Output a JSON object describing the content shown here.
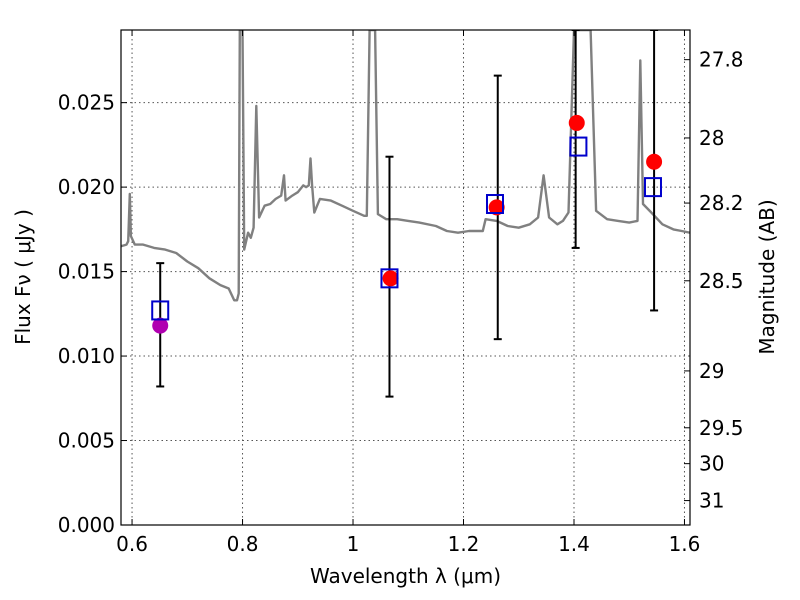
{
  "chart_data": {
    "type": "scatter",
    "xlabel": "Wavelength  λ (μm)",
    "ylabel": "Flux  Fν  ( μJy )",
    "ylabel_right": "Magnitude (AB)",
    "xlim": [
      0.58,
      1.61
    ],
    "ylim": [
      0.0,
      0.0293
    ],
    "grid": true,
    "x_ticks": [
      {
        "value": 0.6,
        "label": "0.6"
      },
      {
        "value": 0.8,
        "label": "0.8"
      },
      {
        "value": 1.0,
        "label": "1"
      },
      {
        "value": 1.2,
        "label": "1.2"
      },
      {
        "value": 1.4,
        "label": "1.4"
      },
      {
        "value": 1.6,
        "label": "1.6"
      }
    ],
    "y_ticks": [
      {
        "value": 0.0,
        "label": "0.000"
      },
      {
        "value": 0.005,
        "label": "0.005"
      },
      {
        "value": 0.01,
        "label": "0.010"
      },
      {
        "value": 0.015,
        "label": "0.015"
      },
      {
        "value": 0.02,
        "label": "0.020"
      },
      {
        "value": 0.025,
        "label": "0.025"
      }
    ],
    "mag_ticks": [
      {
        "value": 27.8,
        "label": "27.8"
      },
      {
        "value": 28.0,
        "label": "28"
      },
      {
        "value": 28.2,
        "label": "28.2"
      },
      {
        "value": 28.5,
        "label": "28.5"
      },
      {
        "value": 29.0,
        "label": "29"
      },
      {
        "value": 29.5,
        "label": "29.5"
      },
      {
        "value": 30.0,
        "label": "30"
      },
      {
        "value": 31.0,
        "label": "31"
      }
    ],
    "series": [
      {
        "kind": "line",
        "color": "#808080",
        "points": [
          [
            0.58,
            0.0165
          ],
          [
            0.59,
            0.0166
          ],
          [
            0.593,
            0.0168
          ],
          [
            0.596,
            0.0196
          ],
          [
            0.598,
            0.0171
          ],
          [
            0.605,
            0.0166
          ],
          [
            0.62,
            0.0166
          ],
          [
            0.64,
            0.0164
          ],
          [
            0.66,
            0.0163
          ],
          [
            0.68,
            0.0161
          ],
          [
            0.7,
            0.0156
          ],
          [
            0.72,
            0.0152
          ],
          [
            0.74,
            0.0146
          ],
          [
            0.76,
            0.0142
          ],
          [
            0.775,
            0.014
          ],
          [
            0.785,
            0.0133
          ],
          [
            0.79,
            0.0133
          ],
          [
            0.793,
            0.0137
          ],
          [
            0.795,
            0.0293
          ],
          [
            0.8,
            0.0293
          ],
          [
            0.803,
            0.0163
          ],
          [
            0.81,
            0.0173
          ],
          [
            0.815,
            0.017
          ],
          [
            0.82,
            0.0176
          ],
          [
            0.825,
            0.0248
          ],
          [
            0.83,
            0.0182
          ],
          [
            0.84,
            0.0189
          ],
          [
            0.85,
            0.019
          ],
          [
            0.86,
            0.0193
          ],
          [
            0.87,
            0.0195
          ],
          [
            0.875,
            0.0207
          ],
          [
            0.878,
            0.0192
          ],
          [
            0.89,
            0.0195
          ],
          [
            0.9,
            0.0197
          ],
          [
            0.91,
            0.0201
          ],
          [
            0.915,
            0.02
          ],
          [
            0.92,
            0.0201
          ],
          [
            0.923,
            0.0217
          ],
          [
            0.926,
            0.0201
          ],
          [
            0.93,
            0.0185
          ],
          [
            0.94,
            0.0193
          ],
          [
            0.96,
            0.0192
          ],
          [
            0.98,
            0.0189
          ],
          [
            1.0,
            0.0186
          ],
          [
            1.02,
            0.0183
          ],
          [
            1.025,
            0.0183
          ],
          [
            1.03,
            0.0293
          ],
          [
            1.04,
            0.0293
          ],
          [
            1.045,
            0.0184
          ],
          [
            1.06,
            0.0181
          ],
          [
            1.08,
            0.0181
          ],
          [
            1.1,
            0.018
          ],
          [
            1.12,
            0.0179
          ],
          [
            1.15,
            0.0177
          ],
          [
            1.17,
            0.0174
          ],
          [
            1.19,
            0.0173
          ],
          [
            1.21,
            0.0174
          ],
          [
            1.235,
            0.0174
          ],
          [
            1.24,
            0.0181
          ],
          [
            1.26,
            0.018
          ],
          [
            1.28,
            0.0177
          ],
          [
            1.3,
            0.0176
          ],
          [
            1.32,
            0.0178
          ],
          [
            1.335,
            0.0182
          ],
          [
            1.345,
            0.0207
          ],
          [
            1.355,
            0.0182
          ],
          [
            1.37,
            0.0178
          ],
          [
            1.38,
            0.018
          ],
          [
            1.39,
            0.0185
          ],
          [
            1.4,
            0.0293
          ],
          [
            1.43,
            0.0293
          ],
          [
            1.44,
            0.0186
          ],
          [
            1.46,
            0.0181
          ],
          [
            1.48,
            0.018
          ],
          [
            1.5,
            0.0179
          ],
          [
            1.515,
            0.018
          ],
          [
            1.52,
            0.0275
          ],
          [
            1.525,
            0.019
          ],
          [
            1.54,
            0.0185
          ],
          [
            1.56,
            0.0178
          ],
          [
            1.58,
            0.0175
          ],
          [
            1.595,
            0.0174
          ],
          [
            1.61,
            0.0173
          ]
        ]
      },
      {
        "kind": "errorbar",
        "color": "#000000",
        "points": [
          {
            "x": 0.651,
            "low": 0.0082,
            "high": 0.0155
          },
          {
            "x": 1.066,
            "low": 0.0076,
            "high": 0.0218
          },
          {
            "x": 1.262,
            "low": 0.011,
            "high": 0.0266
          },
          {
            "x": 1.403,
            "low": 0.0164,
            "high": 0.0293
          },
          {
            "x": 1.545,
            "low": 0.0127,
            "high": 0.0293
          }
        ]
      },
      {
        "kind": "marker",
        "shape": "circle",
        "points": [
          {
            "x": 0.651,
            "y": 0.0118,
            "color": "#b000b0"
          },
          {
            "x": 1.068,
            "y": 0.0146,
            "color": "#ff0000"
          },
          {
            "x": 1.26,
            "y": 0.0188,
            "color": "#ff0000"
          },
          {
            "x": 1.405,
            "y": 0.0238,
            "color": "#ff0000"
          },
          {
            "x": 1.545,
            "y": 0.0215,
            "color": "#ff0000"
          }
        ]
      },
      {
        "kind": "marker",
        "shape": "square",
        "color": "#0000cc",
        "points": [
          {
            "x": 0.651,
            "y": 0.0127
          },
          {
            "x": 1.066,
            "y": 0.0146
          },
          {
            "x": 1.257,
            "y": 0.019
          },
          {
            "x": 1.408,
            "y": 0.0224
          },
          {
            "x": 1.543,
            "y": 0.02
          }
        ]
      }
    ]
  }
}
